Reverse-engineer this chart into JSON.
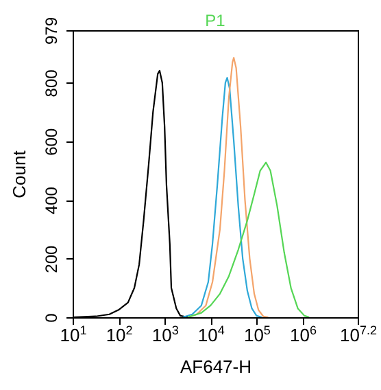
{
  "chart_data": {
    "type": "line",
    "title": "P1",
    "xlabel": "AF647-H",
    "ylabel": "Count",
    "log": "x",
    "xlim": [
      10,
      15848932
    ],
    "xticks": [
      {
        "value": 10,
        "label": "10$^{1}$"
      },
      {
        "value": 100,
        "label": "10$^{2}$"
      },
      {
        "value": 1000,
        "label": "10$^{3}$"
      },
      {
        "value": 10000,
        "label": "10$^{4}$"
      },
      {
        "value": 100000,
        "label": "10$^{5}$"
      },
      {
        "value": 1000000,
        "label": "10$^{6}$"
      },
      {
        "value": 15848932,
        "label": "10$^{7.2}$"
      }
    ],
    "ylim": [
      0,
      979
    ],
    "yticks": [
      0,
      200,
      400,
      600,
      800,
      979
    ],
    "grid": false,
    "legend": false,
    "marker": "none",
    "line_style": "solid",
    "series": [
      {
        "color": "#000000",
        "x": [
          10,
          32,
          63,
          100,
          160,
          220,
          280,
          350,
          450,
          560,
          710,
          780,
          890,
          1000,
          1100,
          1300,
          1400,
          1800,
          2200,
          3200
        ],
        "values": [
          0,
          3,
          10,
          25,
          50,
          100,
          180,
          330,
          520,
          700,
          830,
          841,
          800,
          650,
          450,
          250,
          100,
          30,
          5,
          0
        ]
      },
      {
        "color": "#2ea8d8",
        "x": [
          2500,
          4000,
          6300,
          8900,
          11000,
          14000,
          18000,
          21000,
          23000,
          26000,
          32000,
          40000,
          50000,
          63000,
          79000,
          100000,
          130000
        ],
        "values": [
          0,
          10,
          40,
          120,
          250,
          450,
          680,
          800,
          817,
          780,
          600,
          380,
          200,
          90,
          30,
          5,
          0
        ]
      },
      {
        "color": "#f4a46a",
        "x": [
          3200,
          5000,
          7900,
          11000,
          16000,
          20000,
          25000,
          30000,
          32000,
          36000,
          45000,
          56000,
          71000,
          89000,
          110000,
          140000,
          180000
        ],
        "values": [
          0,
          10,
          40,
          120,
          300,
          500,
          750,
          870,
          885,
          850,
          650,
          400,
          200,
          80,
          25,
          3,
          0
        ]
      },
      {
        "color": "#55d655",
        "x": [
          3200,
          6300,
          10000,
          16000,
          25000,
          40000,
          63000,
          89000,
          120000,
          160000,
          200000,
          280000,
          400000,
          560000,
          790000,
          1100000,
          1400000
        ],
        "values": [
          0,
          15,
          40,
          80,
          140,
          230,
          330,
          420,
          500,
          528,
          500,
          380,
          220,
          100,
          30,
          5,
          0
        ]
      }
    ]
  }
}
